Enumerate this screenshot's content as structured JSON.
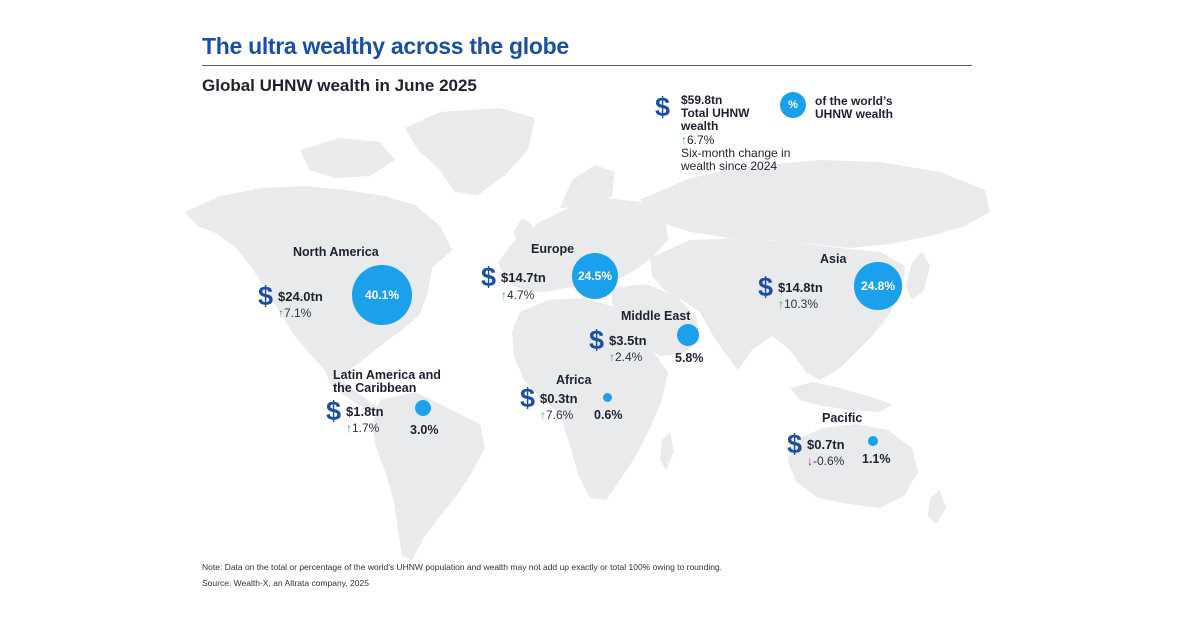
{
  "header": {
    "title": "The ultra wealthy across the globe",
    "subtitle": "Global UHNW wealth in June 2025"
  },
  "legend": {
    "dollar_symbol": "$",
    "total_amount": "$59.8tn",
    "total_label_line1": "Total UHNW",
    "total_label_line2": "wealth",
    "change_arrow": "↑",
    "change_value": "6.7%",
    "change_label_line1": "Six-month change in",
    "change_label_line2": "wealth since 2024",
    "bubble_symbol": "%",
    "share_label_line1": "of the world’s",
    "share_label_line2": "UHNW wealth"
  },
  "regions": {
    "north_america": {
      "name": "North America",
      "wealth": "$24.0tn",
      "arrow": "↑",
      "change": "7.1%",
      "share_label": "40.1%",
      "share_value": 40.1
    },
    "europe": {
      "name": "Europe",
      "wealth": "$14.7tn",
      "arrow": "↑",
      "change": "4.7%",
      "share_label": "24.5%",
      "share_value": 24.5
    },
    "asia": {
      "name": "Asia",
      "wealth": "$14.8tn",
      "arrow": "↑",
      "change": "10.3%",
      "share_label": "24.8%",
      "share_value": 24.8
    },
    "middle_east": {
      "name": "Middle East",
      "wealth": "$3.5tn",
      "arrow": "↑",
      "change": "2.4%",
      "share_label": "5.8%",
      "share_value": 5.8
    },
    "latin_america": {
      "name_line1": "Latin America and",
      "name_line2": "the Caribbean",
      "wealth": "$1.8tn",
      "arrow": "↑",
      "change": "1.7%",
      "share_label": "3.0%",
      "share_value": 3.0
    },
    "africa": {
      "name": "Africa",
      "wealth": "$0.3tn",
      "arrow": "↑",
      "change": "7.6%",
      "share_label": "0.6%",
      "share_value": 0.6
    },
    "pacific": {
      "name": "Pacific",
      "wealth": "$0.7tn",
      "arrow": "↓",
      "change": "-0.6%",
      "share_label": "1.1%",
      "share_value": 1.1
    }
  },
  "footer": {
    "note": "Note: Data on the total or percentage of the world’s UHNW population and wealth may not add up exactly or total 100% owing to rounding.",
    "source": "Source: Wealth-X, an Altrata company, 2025"
  },
  "colors": {
    "title_blue": "#1a4fa5",
    "bubble_blue": "#1ba1ec",
    "land_grey": "#e9eaec",
    "up_green": "#2aa36b",
    "down_red": "#c2185b"
  }
}
